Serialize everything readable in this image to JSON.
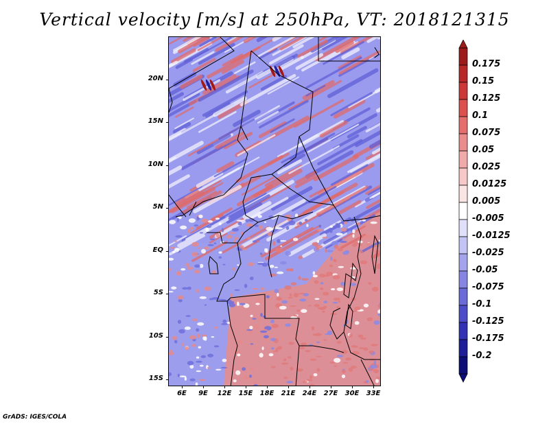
{
  "title": "Vertical velocity [m/s] at 250hPa, VT: 2018121315",
  "footer": "GrADS: IGES/COLA",
  "map": {
    "lat_labels": [
      "20N",
      "15N",
      "10N",
      "5N",
      "EQ",
      "5S",
      "10S",
      "15S"
    ],
    "lon_labels": [
      "6E",
      "9E",
      "12E",
      "15E",
      "18E",
      "21E",
      "24E",
      "27E",
      "30E",
      "33E"
    ]
  },
  "colorbar": {
    "labels": [
      "0.175",
      "0.15",
      "0.125",
      "0.1",
      "0.075",
      "0.05",
      "0.025",
      "0.0125",
      "0.005",
      "-0.005",
      "-0.0125",
      "-0.025",
      "-0.05",
      "-0.075",
      "-0.1",
      "-0.125",
      "-0.175",
      "-0.2"
    ],
    "colors": [
      "#9c1c1c",
      "#b82828",
      "#cc3838",
      "#dc5050",
      "#e46e6e",
      "#ea8c8c",
      "#f0aaaa",
      "#f6c8c8",
      "#fbe4e4",
      "#ffffff",
      "#e0e0fb",
      "#c4c4f4",
      "#a4a4ec",
      "#8686e2",
      "#6a6ad8",
      "#4c4cc8",
      "#3232b4",
      "#1e1e98",
      "#0e0e78"
    ]
  },
  "colors": {
    "positive_field": "#e36a6a",
    "negative_field": "#7474e6",
    "borders": "#000000"
  }
}
